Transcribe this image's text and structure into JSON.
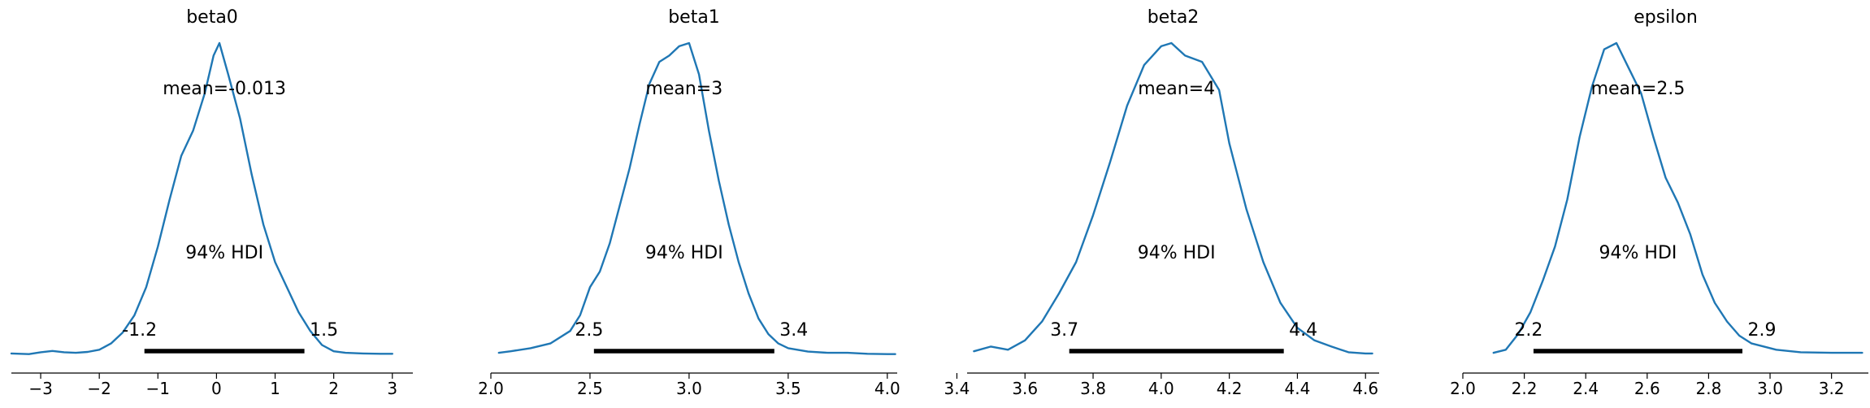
{
  "colors": {
    "kde": "#1f77b4",
    "hdi": "#000000"
  },
  "chart_data": [
    {
      "type": "area",
      "title": "beta0",
      "xlabel": "",
      "ylabel": "",
      "xlim": [
        -3.5,
        3.35
      ],
      "xticks": [
        -3,
        -2,
        -1,
        0,
        1,
        2,
        3
      ],
      "tick_labels": [
        "−3",
        "−2",
        "−1",
        "0",
        "1",
        "2",
        "3"
      ],
      "mean_label": "mean=-0.013",
      "hdi_label": "94% HDI",
      "hdi": [
        -1.23,
        1.5
      ],
      "hdi_low_label": "-1.2",
      "hdi_high_label": "1.5",
      "density": {
        "x": [
          -3.5,
          -3.2,
          -3.0,
          -2.8,
          -2.6,
          -2.4,
          -2.2,
          -2.0,
          -1.8,
          -1.6,
          -1.4,
          -1.2,
          -1.0,
          -0.8,
          -0.6,
          -0.4,
          -0.2,
          -0.05,
          0.05,
          0.2,
          0.4,
          0.6,
          0.8,
          1.0,
          1.2,
          1.4,
          1.6,
          1.8,
          2.0,
          2.2,
          2.5,
          2.8,
          3.0
        ],
        "y": [
          0.008,
          0.006,
          0.012,
          0.016,
          0.012,
          0.01,
          0.013,
          0.02,
          0.04,
          0.075,
          0.13,
          0.22,
          0.35,
          0.5,
          0.64,
          0.72,
          0.84,
          0.96,
          1.0,
          0.9,
          0.76,
          0.58,
          0.42,
          0.3,
          0.22,
          0.14,
          0.08,
          0.035,
          0.015,
          0.01,
          0.008,
          0.007,
          0.007
        ]
      }
    },
    {
      "type": "area",
      "title": "beta1",
      "xlabel": "",
      "ylabel": "",
      "xlim": [
        2.0,
        4.05
      ],
      "xticks": [
        2.0,
        2.5,
        3.0,
        3.5,
        4.0
      ],
      "tick_labels": [
        "2.0",
        "2.5",
        "3.0",
        "3.5",
        "4.0"
      ],
      "mean_label": "mean=3",
      "hdi_label": "94% HDI",
      "hdi": [
        2.52,
        3.43
      ],
      "hdi_low_label": "2.5",
      "hdi_high_label": "3.4",
      "density": {
        "x": [
          2.04,
          2.1,
          2.2,
          2.3,
          2.4,
          2.45,
          2.5,
          2.55,
          2.6,
          2.65,
          2.7,
          2.75,
          2.8,
          2.85,
          2.9,
          2.95,
          3.0,
          3.05,
          3.1,
          3.15,
          3.2,
          3.25,
          3.3,
          3.35,
          3.4,
          3.45,
          3.5,
          3.6,
          3.7,
          3.8,
          3.9,
          4.0,
          4.04
        ],
        "y": [
          0.01,
          0.015,
          0.025,
          0.04,
          0.08,
          0.13,
          0.22,
          0.27,
          0.36,
          0.48,
          0.6,
          0.74,
          0.87,
          0.94,
          0.96,
          0.99,
          1.0,
          0.9,
          0.72,
          0.56,
          0.42,
          0.3,
          0.2,
          0.12,
          0.07,
          0.04,
          0.025,
          0.014,
          0.01,
          0.01,
          0.007,
          0.006,
          0.006
        ]
      }
    },
    {
      "type": "area",
      "title": "beta2",
      "xlabel": "",
      "ylabel": "",
      "xlim": [
        3.43,
        4.64
      ],
      "xticks": [
        3.4,
        3.6,
        3.8,
        4.0,
        4.2,
        4.4,
        4.6
      ],
      "tick_labels": [
        "3.4",
        "3.6",
        "3.8",
        "4.0",
        "4.2",
        "4.4",
        "4.6"
      ],
      "mean_label": "mean=4",
      "hdi_label": "94% HDI",
      "hdi": [
        3.73,
        4.36
      ],
      "hdi_low_label": "3.7",
      "hdi_high_label": "4.4",
      "density": {
        "x": [
          3.45,
          3.5,
          3.55,
          3.6,
          3.65,
          3.7,
          3.75,
          3.8,
          3.85,
          3.9,
          3.95,
          4.0,
          4.03,
          4.07,
          4.12,
          4.17,
          4.2,
          4.25,
          4.3,
          4.35,
          4.4,
          4.45,
          4.5,
          4.55,
          4.6,
          4.62
        ],
        "y": [
          0.015,
          0.03,
          0.02,
          0.05,
          0.11,
          0.2,
          0.3,
          0.45,
          0.62,
          0.8,
          0.93,
          0.99,
          1.0,
          0.96,
          0.94,
          0.85,
          0.68,
          0.47,
          0.3,
          0.17,
          0.09,
          0.05,
          0.03,
          0.012,
          0.008,
          0.008
        ]
      }
    },
    {
      "type": "area",
      "title": "epsilon",
      "xlabel": "",
      "ylabel": "",
      "xlim": [
        2.0,
        3.32
      ],
      "xticks": [
        2.0,
        2.2,
        2.4,
        2.6,
        2.8,
        3.0,
        3.2
      ],
      "tick_labels": [
        "2.0",
        "2.2",
        "2.4",
        "2.6",
        "2.8",
        "3.0",
        "3.2"
      ],
      "mean_label": "mean=2.5",
      "hdi_label": "94% HDI",
      "hdi": [
        2.23,
        2.91
      ],
      "hdi_low_label": "2.2",
      "hdi_high_label": "2.9",
      "density": {
        "x": [
          2.1,
          2.14,
          2.18,
          2.22,
          2.26,
          2.3,
          2.34,
          2.38,
          2.42,
          2.46,
          2.5,
          2.54,
          2.58,
          2.62,
          2.66,
          2.7,
          2.74,
          2.78,
          2.82,
          2.86,
          2.9,
          2.94,
          2.98,
          3.02,
          3.1,
          3.2,
          3.3
        ],
        "y": [
          0.01,
          0.02,
          0.07,
          0.14,
          0.24,
          0.35,
          0.5,
          0.7,
          0.86,
          0.98,
          1.0,
          0.92,
          0.84,
          0.7,
          0.57,
          0.49,
          0.39,
          0.26,
          0.17,
          0.11,
          0.065,
          0.04,
          0.03,
          0.02,
          0.012,
          0.01,
          0.01
        ]
      }
    }
  ]
}
